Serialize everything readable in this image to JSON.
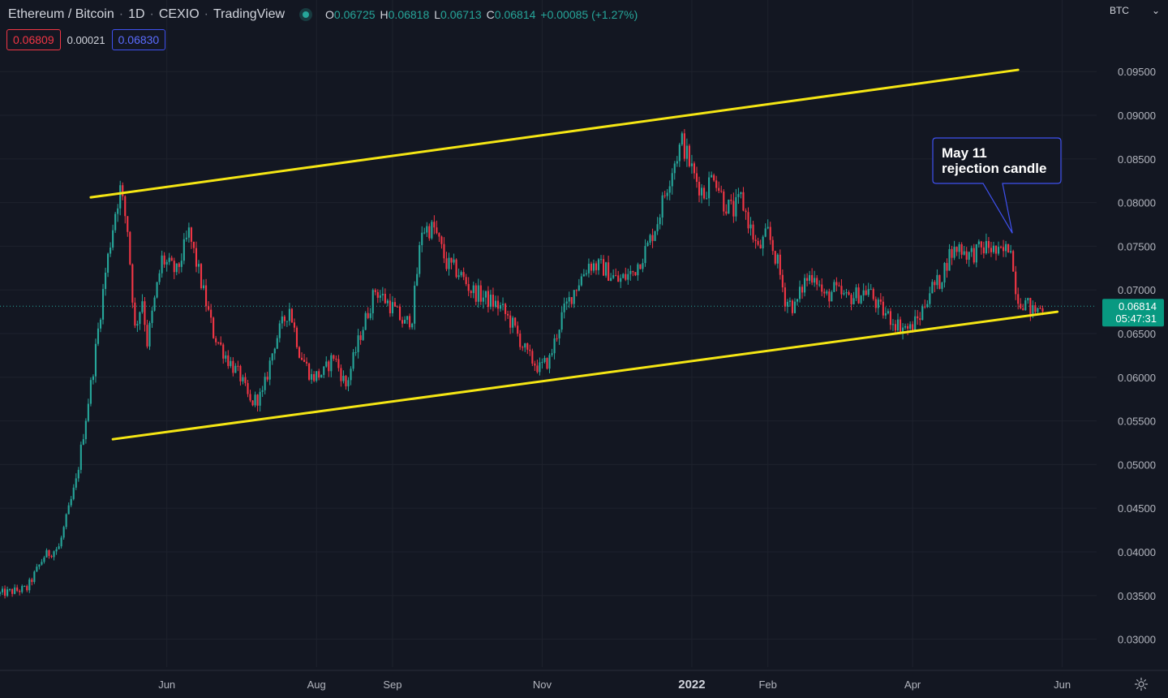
{
  "header": {
    "symbol": "Ethereum / Bitcoin",
    "interval": "1D",
    "exchange": "CEXIO",
    "source": "TradingView",
    "ohlc": [
      {
        "k": "O",
        "v": "0.06725"
      },
      {
        "k": "H",
        "v": "0.06818"
      },
      {
        "k": "L",
        "v": "0.06713"
      },
      {
        "k": "C",
        "v": "0.06814"
      }
    ],
    "change": "+0.00085 (+1.27%)"
  },
  "quote": {
    "bid": "0.06809",
    "spread": "0.00021",
    "ask": "0.06830"
  },
  "currency": {
    "label": "BTC",
    "chevron_icon": "chevron-down-icon"
  },
  "price_tag": {
    "price": "0.06814",
    "countdown": "05:47:31"
  },
  "annotation": {
    "line1": "May 11",
    "line2": "rejection candle"
  },
  "colors": {
    "background": "#131722",
    "up": "#26a69a",
    "down": "#f23645",
    "trendline": "#f5e614",
    "callout_border": "#3f51f0",
    "grid": "#1e222d"
  },
  "chart_data": {
    "type": "candlestick",
    "title": "Ethereum / Bitcoin · 1D · CEXIO",
    "y_ticks": [
      "0.03000",
      "0.03500",
      "0.04000",
      "0.04500",
      "0.05000",
      "0.05500",
      "0.06000",
      "0.06500",
      "0.07000",
      "0.07500",
      "0.08000",
      "0.08500",
      "0.09000",
      "0.09500"
    ],
    "ylim": [
      0.0268,
      0.1032
    ],
    "x_ticks": [
      {
        "label": "Jun",
        "date": "2021-06-01",
        "bold": false
      },
      {
        "label": "Aug",
        "date": "2021-08-01",
        "bold": false
      },
      {
        "label": "Sep",
        "date": "2021-09-01",
        "bold": false
      },
      {
        "label": "Nov",
        "date": "2021-11-01",
        "bold": false
      },
      {
        "label": "2022",
        "date": "2022-01-01",
        "bold": true
      },
      {
        "label": "Feb",
        "date": "2022-02-01",
        "bold": false
      },
      {
        "label": "Apr",
        "date": "2022-04-01",
        "bold": false
      },
      {
        "label": "Jun",
        "date": "2022-06-01",
        "bold": false
      }
    ],
    "xlim": [
      "2021-03-25",
      "2022-06-15"
    ],
    "price_path": [
      [
        "2021-03-25",
        0.0352
      ],
      [
        "2021-04-05",
        0.0358
      ],
      [
        "2021-04-12",
        0.0395
      ],
      [
        "2021-04-18",
        0.0405
      ],
      [
        "2021-04-25",
        0.048
      ],
      [
        "2021-05-02",
        0.061
      ],
      [
        "2021-05-07",
        0.072
      ],
      [
        "2021-05-11",
        0.079
      ],
      [
        "2021-05-13",
        0.0815
      ],
      [
        "2021-05-16",
        0.077
      ],
      [
        "2021-05-19",
        0.0655
      ],
      [
        "2021-05-22",
        0.069
      ],
      [
        "2021-05-24",
        0.064
      ],
      [
        "2021-05-30",
        0.0735
      ],
      [
        "2021-06-05",
        0.072
      ],
      [
        "2021-06-10",
        0.0765
      ],
      [
        "2021-06-14",
        0.072
      ],
      [
        "2021-06-20",
        0.065
      ],
      [
        "2021-06-26",
        0.062
      ],
      [
        "2021-07-01",
        0.06
      ],
      [
        "2021-07-05",
        0.057
      ],
      [
        "2021-07-10",
        0.058
      ],
      [
        "2021-07-15",
        0.064
      ],
      [
        "2021-07-21",
        0.068
      ],
      [
        "2021-07-25",
        0.063
      ],
      [
        "2021-07-30",
        0.06
      ],
      [
        "2021-08-04",
        0.0605
      ],
      [
        "2021-08-08",
        0.0625
      ],
      [
        "2021-08-13",
        0.059
      ],
      [
        "2021-08-19",
        0.065
      ],
      [
        "2021-08-25",
        0.07
      ],
      [
        "2021-09-01",
        0.068
      ],
      [
        "2021-09-06",
        0.066
      ],
      [
        "2021-09-09",
        0.067
      ],
      [
        "2021-09-13",
        0.077
      ],
      [
        "2021-09-18",
        0.077
      ],
      [
        "2021-09-23",
        0.073
      ],
      [
        "2021-09-28",
        0.072
      ],
      [
        "2021-10-03",
        0.07
      ],
      [
        "2021-10-09",
        0.069
      ],
      [
        "2021-10-15",
        0.068
      ],
      [
        "2021-10-20",
        0.066
      ],
      [
        "2021-10-26",
        0.0625
      ],
      [
        "2021-10-31",
        0.061
      ],
      [
        "2021-11-04",
        0.062
      ],
      [
        "2021-11-09",
        0.067
      ],
      [
        "2021-11-14",
        0.07
      ],
      [
        "2021-11-20",
        0.073
      ],
      [
        "2021-11-26",
        0.0725
      ],
      [
        "2021-12-02",
        0.071
      ],
      [
        "2021-12-08",
        0.072
      ],
      [
        "2021-12-14",
        0.075
      ],
      [
        "2021-12-18",
        0.078
      ],
      [
        "2021-12-24",
        0.084
      ],
      [
        "2021-12-28",
        0.087
      ],
      [
        "2022-01-02",
        0.083
      ],
      [
        "2022-01-06",
        0.081
      ],
      [
        "2022-01-10",
        0.0835
      ],
      [
        "2022-01-14",
        0.08
      ],
      [
        "2022-01-18",
        0.079
      ],
      [
        "2022-01-21",
        0.0805
      ],
      [
        "2022-01-25",
        0.077
      ],
      [
        "2022-01-28",
        0.0745
      ],
      [
        "2022-02-01",
        0.0765
      ],
      [
        "2022-02-05",
        0.073
      ],
      [
        "2022-02-08",
        0.069
      ],
      [
        "2022-02-12",
        0.068
      ],
      [
        "2022-02-16",
        0.071
      ],
      [
        "2022-02-20",
        0.072
      ],
      [
        "2022-02-24",
        0.069
      ],
      [
        "2022-02-28",
        0.07
      ],
      [
        "2022-03-05",
        0.069
      ],
      [
        "2022-03-10",
        0.0695
      ],
      [
        "2022-03-14",
        0.07
      ],
      [
        "2022-03-18",
        0.068
      ],
      [
        "2022-03-22",
        0.067
      ],
      [
        "2022-03-26",
        0.066
      ],
      [
        "2022-03-31",
        0.0655
      ],
      [
        "2022-04-04",
        0.067
      ],
      [
        "2022-04-08",
        0.07
      ],
      [
        "2022-04-12",
        0.071
      ],
      [
        "2022-04-16",
        0.074
      ],
      [
        "2022-04-20",
        0.075
      ],
      [
        "2022-04-24",
        0.074
      ],
      [
        "2022-04-28",
        0.0745
      ],
      [
        "2022-05-02",
        0.075
      ],
      [
        "2022-05-06",
        0.074
      ],
      [
        "2022-05-09",
        0.0745
      ],
      [
        "2022-05-11",
        0.0755
      ],
      [
        "2022-05-12",
        0.072
      ],
      [
        "2022-05-14",
        0.069
      ],
      [
        "2022-05-17",
        0.0685
      ],
      [
        "2022-05-20",
        0.0675
      ],
      [
        "2022-05-24",
        0.0681
      ]
    ],
    "trendlines": [
      {
        "name": "upper",
        "from": [
          "2021-05-01",
          0.0806
        ],
        "to": [
          "2022-05-14",
          0.0952
        ]
      },
      {
        "name": "lower",
        "from": [
          "2021-05-10",
          0.0529
        ],
        "to": [
          "2022-05-30",
          0.0675
        ]
      }
    ],
    "last_price": 0.06814,
    "annotation_date": "2022-05-11",
    "grid": true
  }
}
